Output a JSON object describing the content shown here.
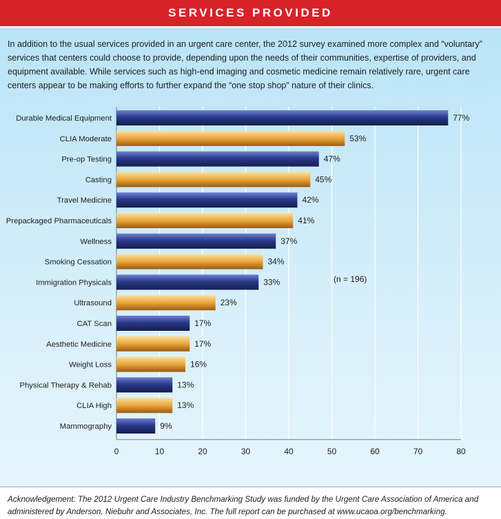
{
  "header": {
    "title": "SERVICES PROVIDED"
  },
  "intro": {
    "text": "In addition to the usual services provided in an urgent care center, the 2012 survey examined more complex and “voluntary” services that centers could choose to provide, depending upon the needs of their communities, expertise of providers, and equipment available. While services such as high-end imaging and cosmetic medicine remain relatively rare, urgent care centers appear to be making efforts to further expand the “one stop shop” nature of their clinics."
  },
  "colors": {
    "header_red": "#d8222a",
    "bar_blue": "#2b3a8c",
    "bar_gold": "#e9a63a",
    "background_blue": "#c6e8f8"
  },
  "chart_data": {
    "type": "bar",
    "orientation": "horizontal",
    "categories": [
      "Durable Medical Equipment",
      "CLIA Moderate",
      "Pre-op Testing",
      "Casting",
      "Travel Medicine",
      "Prepackaged Pharmaceuticals",
      "Wellness",
      "Smoking Cessation",
      "Immigration Physicals",
      "Ultrasound",
      "CAT Scan",
      "Aesthetic Medicine",
      "Weight Loss",
      "Physical Therapy & Rehab",
      "CLIA High",
      "Mammography"
    ],
    "values": [
      77,
      53,
      47,
      45,
      42,
      41,
      37,
      34,
      33,
      23,
      17,
      17,
      16,
      13,
      13,
      9
    ],
    "value_labels": [
      "77%",
      "53%",
      "47%",
      "45%",
      "42%",
      "41%",
      "37%",
      "34%",
      "33%",
      "23%",
      "17%",
      "17%",
      "16%",
      "13%",
      "13%",
      "9%"
    ],
    "bar_colors": [
      "blue",
      "gold",
      "blue",
      "gold",
      "blue",
      "gold",
      "blue",
      "gold",
      "blue",
      "gold",
      "blue",
      "gold",
      "gold",
      "blue",
      "gold",
      "blue"
    ],
    "x_ticks": [
      0,
      10,
      20,
      30,
      40,
      50,
      60,
      70,
      80
    ],
    "xlim": [
      0,
      80
    ],
    "grid": "vertical",
    "annotation": "(n = 196)",
    "title": "",
    "xlabel": "",
    "ylabel": ""
  },
  "footer": {
    "acknowledgement": "Acknowledgement: The 2012 Urgent Care Industry Benchmarking Study was funded by the Urgent Care Association of America and administered by Anderson, Niebuhr and Associates, Inc. The full report can be purchased at www.ucaoa.org/benchmarking."
  }
}
